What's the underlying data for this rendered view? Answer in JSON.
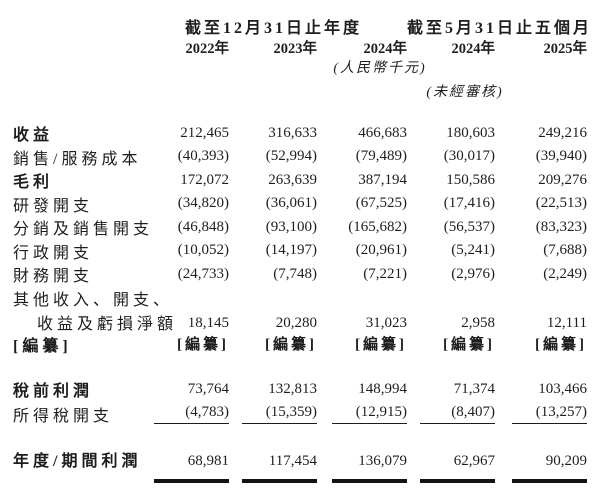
{
  "header": {
    "period_annual": "截至12月31日止年度",
    "period_interim": "截至5月31日止五個月",
    "years": [
      "2022年",
      "2023年",
      "2024年",
      "2024年",
      "2025年"
    ],
    "currency_note": "(人民幣千元)",
    "unaudited_note": "(未經審核)"
  },
  "table": {
    "rows": [
      {
        "label": "收益",
        "values": [
          "212,465",
          "316,633",
          "466,683",
          "180,603",
          "249,216"
        ]
      },
      {
        "label": "銷售/服務成本",
        "values": [
          "(40,393)",
          "(52,994)",
          "(79,489)",
          "(30,017)",
          "(39,940)"
        ]
      },
      {
        "label": "毛利",
        "values": [
          "172,072",
          "263,639",
          "387,194",
          "150,586",
          "209,276"
        ]
      },
      {
        "label": "研發開支",
        "values": [
          "(34,820)",
          "(36,061)",
          "(67,525)",
          "(17,416)",
          "(22,513)"
        ]
      },
      {
        "label": "分銷及銷售開支",
        "values": [
          "(46,848)",
          "(93,100)",
          "(165,682)",
          "(56,537)",
          "(83,323)"
        ]
      },
      {
        "label": "行政開支",
        "values": [
          "(10,052)",
          "(14,197)",
          "(20,961)",
          "(5,241)",
          "(7,688)"
        ]
      },
      {
        "label": "財務開支",
        "values": [
          "(24,733)",
          "(7,748)",
          "(7,221)",
          "(2,976)",
          "(2,249)"
        ]
      },
      {
        "label_line1": "其他收入、開支、",
        "label_line2": "收益及虧損淨額",
        "values": [
          "18,145",
          "20,280",
          "31,023",
          "2,958",
          "12,111"
        ]
      },
      {
        "label": "[編纂]",
        "values": [
          "[編纂]",
          "[編纂]",
          "[編纂]",
          "[編纂]",
          "[編纂]"
        ]
      },
      {
        "label": "稅前利潤",
        "values": [
          "73,764",
          "132,813",
          "148,994",
          "71,374",
          "103,466"
        ]
      },
      {
        "label": "所得稅開支",
        "values": [
          "(4,783)",
          "(15,359)",
          "(12,915)",
          "(8,407)",
          "(13,257)"
        ]
      },
      {
        "label": "年度/期間利潤",
        "values": [
          "68,981",
          "117,454",
          "136,079",
          "62,967",
          "90,209"
        ]
      }
    ]
  }
}
